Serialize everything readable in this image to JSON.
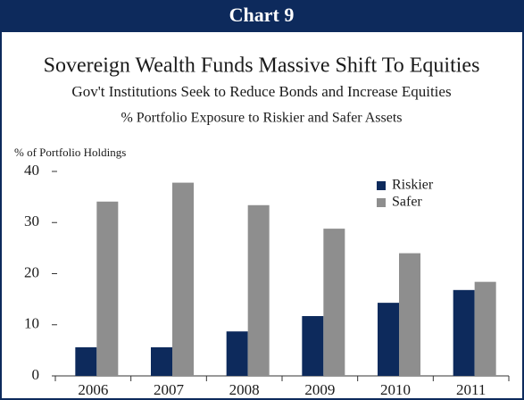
{
  "chart_data": {
    "type": "bar",
    "header": "Chart 9",
    "title": "Sovereign Wealth Funds Massive Shift To Equities",
    "subtitle": "Gov't Institutions Seek to Reduce Bonds and Increase Equities",
    "subtitle2": "% Portfolio Exposure to Riskier and Safer Assets",
    "ylabel": "% of Portfolio Holdings",
    "categories": [
      "2006",
      "2007",
      "2008",
      "2009",
      "2010",
      "2011"
    ],
    "series": [
      {
        "name": "Riskier",
        "color": "#0d2a5c",
        "values": [
          5.6,
          5.6,
          8.7,
          11.7,
          14.3,
          16.8
        ]
      },
      {
        "name": "Safer",
        "color": "#8e8e8e",
        "values": [
          34.1,
          37.8,
          33.4,
          28.8,
          24.0,
          18.4
        ]
      }
    ],
    "ylim": [
      0,
      40
    ],
    "yticks": [
      0,
      10,
      20,
      30,
      40
    ],
    "legend": "upper right"
  }
}
